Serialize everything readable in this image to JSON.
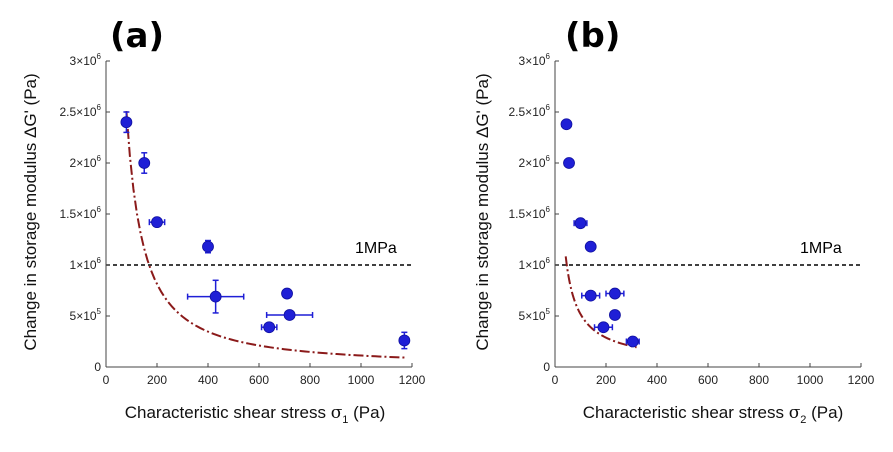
{
  "chart_data": [
    {
      "type": "scatter",
      "panel_label": "(a)",
      "xlabel_main": "Characteristic shear stress ",
      "xlabel_symbol": "σ",
      "xlabel_subscript": "1",
      "xlabel_unit": " (Pa)",
      "ylabel": "Change in storage modulus ΔG' (Pa)",
      "xlim": [
        0,
        1200
      ],
      "ylim": [
        0,
        3000000
      ],
      "x_ticks": [
        "0",
        "200",
        "400",
        "600",
        "800",
        "1000",
        "1200"
      ],
      "y_ticks": [
        {
          "value": 0,
          "base": "0",
          "exp": ""
        },
        {
          "value": 500000,
          "base": "5×10",
          "exp": "5"
        },
        {
          "value": 1000000,
          "base": "1×10",
          "exp": "6"
        },
        {
          "value": 1500000,
          "base": "1.5×10",
          "exp": "6"
        },
        {
          "value": 2000000,
          "base": "2×10",
          "exp": "6"
        },
        {
          "value": 2500000,
          "base": "2.5×10",
          "exp": "6"
        },
        {
          "value": 3000000,
          "base": "3×10",
          "exp": "6"
        }
      ],
      "points": [
        {
          "x": 80,
          "y": 2400000,
          "xerr": 10,
          "yerr": 100000
        },
        {
          "x": 150,
          "y": 2000000,
          "xerr": 15,
          "yerr": 100000
        },
        {
          "x": 200,
          "y": 1420000,
          "xerr": 30,
          "yerr": 40000
        },
        {
          "x": 400,
          "y": 1180000,
          "xerr": 10,
          "yerr": 60000
        },
        {
          "x": 430,
          "y": 690000,
          "xerr": 110,
          "yerr": 160000
        },
        {
          "x": 640,
          "y": 390000,
          "xerr": 30,
          "yerr": 20000
        },
        {
          "x": 710,
          "y": 720000,
          "xerr": 10,
          "yerr": 40000
        },
        {
          "x": 720,
          "y": 510000,
          "xerr": 90,
          "yerr": 40000
        },
        {
          "x": 1170,
          "y": 260000,
          "xerr": 10,
          "yerr": 80000
        }
      ],
      "fit": {
        "type": "power",
        "a": 550000000.0,
        "b": -1.23,
        "x_range": [
          80,
          1180
        ]
      },
      "reference_line": {
        "y": 1000000,
        "label": "1MPa"
      },
      "marker_color": "#1f1fd6",
      "fit_color": "#8b1a1a"
    },
    {
      "type": "scatter",
      "panel_label": "(b)",
      "xlabel_main": "Characteristic shear stress ",
      "xlabel_symbol": "σ",
      "xlabel_subscript": "2",
      "xlabel_unit": " (Pa)",
      "ylabel": "Change in storage modulus ΔG' (Pa)",
      "xlim": [
        0,
        1200
      ],
      "ylim": [
        0,
        3000000
      ],
      "x_ticks": [
        "0",
        "200",
        "400",
        "600",
        "800",
        "1000",
        "1200"
      ],
      "y_ticks": [
        {
          "value": 0,
          "base": "0",
          "exp": ""
        },
        {
          "value": 500000,
          "base": "5×10",
          "exp": "5"
        },
        {
          "value": 1000000,
          "base": "1×10",
          "exp": "6"
        },
        {
          "value": 1500000,
          "base": "1.5×10",
          "exp": "6"
        },
        {
          "value": 2000000,
          "base": "2×10",
          "exp": "6"
        },
        {
          "value": 2500000,
          "base": "2.5×10",
          "exp": "6"
        },
        {
          "value": 3000000,
          "base": "3×10",
          "exp": "6"
        }
      ],
      "points": [
        {
          "x": 45,
          "y": 2380000,
          "xerr": 5,
          "yerr": 30000
        },
        {
          "x": 55,
          "y": 2000000,
          "xerr": 5,
          "yerr": 30000
        },
        {
          "x": 100,
          "y": 1410000,
          "xerr": 25,
          "yerr": 30000
        },
        {
          "x": 140,
          "y": 1180000,
          "xerr": 5,
          "yerr": 30000
        },
        {
          "x": 140,
          "y": 700000,
          "xerr": 35,
          "yerr": 30000
        },
        {
          "x": 235,
          "y": 720000,
          "xerr": 35,
          "yerr": 30000
        },
        {
          "x": 235,
          "y": 510000,
          "xerr": 15,
          "yerr": 30000
        },
        {
          "x": 190,
          "y": 390000,
          "xerr": 35,
          "yerr": 30000
        },
        {
          "x": 305,
          "y": 250000,
          "xerr": 25,
          "yerr": 30000
        }
      ],
      "fit": {
        "type": "power",
        "a": 26000000.0,
        "b": -0.85,
        "x_range": [
          42,
          320
        ]
      },
      "reference_line": {
        "y": 1000000,
        "label": "1MPa"
      },
      "marker_color": "#1f1fd6",
      "fit_color": "#8b1a1a"
    }
  ]
}
